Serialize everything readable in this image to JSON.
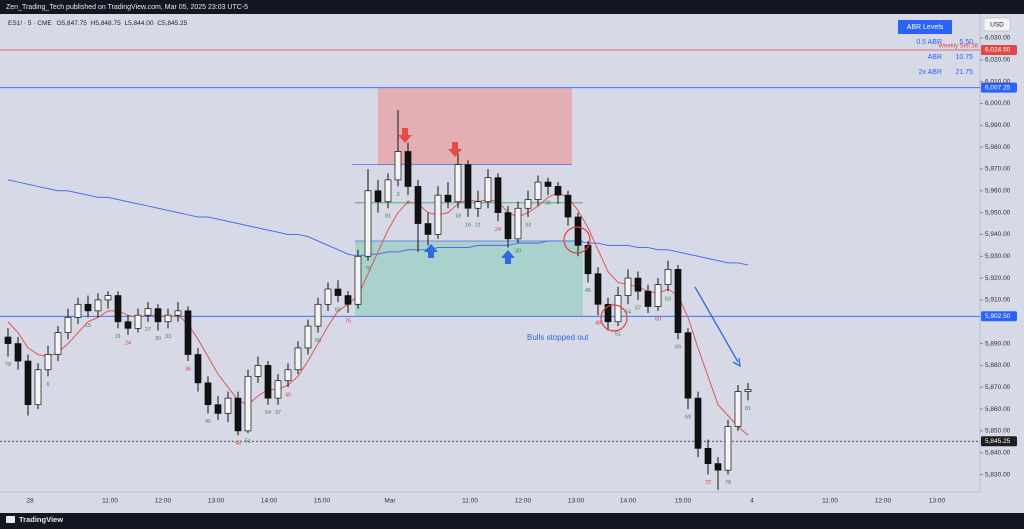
{
  "header": {
    "text": "Zen_Trading_Tech published on TradingView.com, Mar 05, 2025 23:03 UTC-5"
  },
  "footer": {
    "brand": "TradingView"
  },
  "chart_data": {
    "type": "candlestick",
    "symbol": "ES1! · 5 · CME",
    "legend_values": [
      "O5,847.75",
      "H5,848.75",
      "L5,844.00",
      "C5,845.25"
    ],
    "currency": "USD",
    "open": [
      5893,
      5890,
      5882,
      5862,
      5878,
      5885,
      5895,
      5902,
      5908,
      5905,
      5910,
      5912,
      5900,
      5897,
      5903,
      5906,
      5900,
      5903,
      5905,
      5885,
      5872,
      5862,
      5858,
      5865,
      5850,
      5875,
      5880,
      5865,
      5873,
      5878,
      5888,
      5898,
      5908,
      5915,
      5912,
      5908,
      5930,
      5960,
      5955,
      5965,
      5978,
      5962,
      5945,
      5940,
      5958,
      5955,
      5972,
      5952,
      5955,
      5966,
      5950,
      5938,
      5952,
      5956,
      5964,
      5962,
      5958,
      5948,
      5935,
      5922,
      5908,
      5900,
      5912,
      5920,
      5914,
      5907,
      5917,
      5924,
      5895,
      5865,
      5842,
      5835,
      5832,
      5852,
      5868
    ],
    "high": [
      5897,
      5893,
      5885,
      5881,
      5889,
      5898,
      5906,
      5911,
      5912,
      5913,
      5914,
      5914,
      5903,
      5906,
      5909,
      5908,
      5906,
      5909,
      5907,
      5888,
      5875,
      5866,
      5868,
      5868,
      5878,
      5884,
      5882,
      5876,
      5881,
      5891,
      5901,
      5911,
      5918,
      5919,
      5914,
      5933,
      5970,
      5965,
      5968,
      5997,
      5982,
      5965,
      5950,
      5962,
      5964,
      5977,
      5974,
      5960,
      5970,
      5968,
      5953,
      5955,
      5960,
      5967,
      5966,
      5964,
      5960,
      5950,
      5937,
      5925,
      5911,
      5916,
      5924,
      5923,
      5917,
      5920,
      5928,
      5926,
      5897,
      5868,
      5846,
      5838,
      5855,
      5871,
      5872
    ],
    "low": [
      5884,
      5878,
      5857,
      5860,
      5875,
      5882,
      5892,
      5899,
      5902,
      5902,
      5906,
      5897,
      5894,
      5895,
      5900,
      5896,
      5897,
      5900,
      5882,
      5868,
      5858,
      5855,
      5854,
      5848,
      5849,
      5872,
      5862,
      5862,
      5870,
      5876,
      5885,
      5895,
      5905,
      5909,
      5904,
      5906,
      5928,
      5950,
      5952,
      5962,
      5958,
      5932,
      5935,
      5938,
      5952,
      5952,
      5948,
      5948,
      5952,
      5946,
      5934,
      5936,
      5948,
      5953,
      5958,
      5954,
      5944,
      5930,
      5918,
      5903,
      5896,
      5898,
      5908,
      5910,
      5904,
      5905,
      5914,
      5892,
      5860,
      5838,
      5830,
      5823,
      5830,
      5850,
      5864
    ],
    "close": [
      5890,
      5882,
      5862,
      5878,
      5885,
      5895,
      5902,
      5908,
      5905,
      5910,
      5912,
      5900,
      5897,
      5903,
      5906,
      5900,
      5903,
      5905,
      5885,
      5872,
      5862,
      5858,
      5865,
      5850,
      5875,
      5880,
      5865,
      5873,
      5878,
      5888,
      5898,
      5908,
      5915,
      5912,
      5908,
      5930,
      5960,
      5955,
      5965,
      5978,
      5962,
      5945,
      5940,
      5958,
      5955,
      5972,
      5952,
      5955,
      5966,
      5950,
      5938,
      5952,
      5956,
      5964,
      5962,
      5958,
      5948,
      5935,
      5922,
      5908,
      5900,
      5912,
      5920,
      5914,
      5907,
      5917,
      5924,
      5895,
      5865,
      5842,
      5835,
      5832,
      5852,
      5868,
      5869
    ],
    "moving_averages": [
      {
        "color": "#4f6ee8",
        "values": [
          5965,
          5964,
          5963,
          5962,
          5961,
          5960,
          5960,
          5959,
          5958,
          5957,
          5957,
          5956,
          5955,
          5954,
          5953,
          5952,
          5951,
          5950,
          5949,
          5948,
          5948,
          5947,
          5946,
          5945,
          5944,
          5943,
          5942,
          5941,
          5940,
          5940,
          5939,
          5937,
          5935,
          5933,
          5931,
          5930,
          5931,
          5931,
          5932,
          5932,
          5933,
          5933,
          5933,
          5934,
          5934,
          5934,
          5934,
          5935,
          5935,
          5935,
          5935,
          5936,
          5936,
          5936,
          5937,
          5937,
          5937,
          5937,
          5936,
          5936,
          5935,
          5935,
          5935,
          5934,
          5934,
          5933,
          5933,
          5932,
          5931,
          5930,
          5929,
          5928,
          5927,
          5927,
          5926
        ]
      },
      {
        "color": "#e05555",
        "values": [
          5900,
          5895,
          5888,
          5885,
          5884,
          5886,
          5890,
          5895,
          5900,
          5902,
          5905,
          5905,
          5903,
          5902,
          5903,
          5903,
          5902,
          5903,
          5899,
          5892,
          5884,
          5876,
          5870,
          5864,
          5862,
          5866,
          5869,
          5869,
          5871,
          5875,
          5882,
          5890,
          5898,
          5905,
          5908,
          5912,
          5922,
          5932,
          5942,
          5950,
          5955,
          5954,
          5950,
          5949,
          5950,
          5954,
          5956,
          5955,
          5956,
          5955,
          5950,
          5948,
          5950,
          5953,
          5957,
          5959,
          5957,
          5951,
          5943,
          5933,
          5923,
          5918,
          5917,
          5916,
          5914,
          5913,
          5915,
          5912,
          5902,
          5888,
          5875,
          5862,
          5857,
          5852,
          5848
        ]
      }
    ],
    "ylim": [
      5822,
      6041
    ],
    "yticks": [
      {
        "value": 6030,
        "label": "6,030.00"
      },
      {
        "value": 6020,
        "label": "6,020.00"
      },
      {
        "value": 6010,
        "label": "6,010.00"
      },
      {
        "value": 6000,
        "label": "6,000.00"
      },
      {
        "value": 5990,
        "label": "5,990.00"
      },
      {
        "value": 5980,
        "label": "5,980.00"
      },
      {
        "value": 5970,
        "label": "5,970.00"
      },
      {
        "value": 5960,
        "label": "5,960.00"
      },
      {
        "value": 5950,
        "label": "5,950.00"
      },
      {
        "value": 5940,
        "label": "5,940.00"
      },
      {
        "value": 5930,
        "label": "5,930.00"
      },
      {
        "value": 5920,
        "label": "5,920.00"
      },
      {
        "value": 5910,
        "label": "5,910.00"
      },
      {
        "value": 5890,
        "label": "5,890.00"
      },
      {
        "value": 5880,
        "label": "5,880.00"
      },
      {
        "value": 5870,
        "label": "5,870.00"
      },
      {
        "value": 5860,
        "label": "5,860.00"
      },
      {
        "value": 5850,
        "label": "5,850.00"
      },
      {
        "value": 5840,
        "label": "5,840.00"
      },
      {
        "value": 5830,
        "label": "5,830.00"
      }
    ],
    "x_axis_labels": [
      "28",
      "11:00",
      "12:00",
      "13:00",
      "14:00",
      "15:00",
      "Mar",
      "11:00",
      "12:00",
      "13:00",
      "14:00",
      "15:00",
      "4",
      "11:00",
      "12:00",
      "13:00"
    ],
    "levels": [
      {
        "value": 6024.5,
        "label": "6,024.50",
        "color": "#e04848",
        "text": "Weekly Sell 38"
      },
      {
        "value": 6007.25,
        "label": "6,007.25",
        "color": "#2962ff"
      },
      {
        "value": 5902.5,
        "label": "5,902.50",
        "color": "#2962ff"
      },
      {
        "value": 5845.25,
        "label": "5,845.25",
        "color": "#1e1e1e"
      }
    ],
    "zones": [
      {
        "top": 6007,
        "bottom": 5972,
        "color": "rgba(242,120,120,0.45)",
        "edge": "#4f6ee8"
      },
      {
        "top": 5937,
        "bottom": 5902.5,
        "color": "rgba(110,200,170,0.45)",
        "edge": "#4f6ee8",
        "mid": 5954.5
      }
    ],
    "annotation": "Bulls stopped out",
    "bar_labels": [
      {
        "value": 78,
        "color": "#3b8a4a"
      },
      null,
      null,
      null,
      {
        "value": 6,
        "color": "#3b8a4a"
      },
      null,
      null,
      null,
      {
        "value": 15,
        "color": "#3b8a4a"
      },
      null,
      null,
      {
        "value": 31,
        "color": "#3b8a4a"
      },
      {
        "value": 24,
        "color": "#d84040"
      },
      null,
      {
        "value": 27,
        "color": "#3b8a4a"
      },
      {
        "value": 30,
        "color": "#3b8a4a"
      },
      {
        "value": 33,
        "color": "#3b8a4a"
      },
      null,
      {
        "value": 36,
        "color": "#d84040"
      },
      null,
      {
        "value": 40,
        "color": "#3b8a4a"
      },
      null,
      null,
      {
        "value": 48,
        "color": "#d84040"
      },
      {
        "value": 51,
        "color": "#3b8a4a"
      },
      null,
      {
        "value": 54,
        "color": "#3b8a4a"
      },
      {
        "value": 37,
        "color": "#3b8a4a"
      },
      {
        "value": 40,
        "color": "#d84040"
      },
      null,
      null,
      {
        "value": 66,
        "color": "#3b8a4a"
      },
      null,
      {
        "value": 69,
        "color": "#3b8a4a"
      },
      {
        "value": 75,
        "color": "#d84040"
      },
      null,
      {
        "value": 76,
        "color": "#3b8a4a"
      },
      null,
      {
        "value": 81,
        "color": "#3b8a4a"
      },
      {
        "value": 3,
        "color": "#3b8a4a"
      },
      {
        "value": 6,
        "color": "#3b8a4a"
      },
      null,
      null,
      null,
      null,
      {
        "value": 18,
        "color": "#3b8a4a"
      },
      {
        "value": 16,
        "color": "#3b8a4a"
      },
      {
        "value": 21,
        "color": "#3b8a4a"
      },
      null,
      {
        "value": 24,
        "color": "#d84040"
      },
      null,
      {
        "value": 30,
        "color": "#3b8a4a"
      },
      {
        "value": 33,
        "color": "#3b8a4a"
      },
      null,
      {
        "value": 36,
        "color": "#3b8a4a"
      },
      null,
      null,
      null,
      {
        "value": 45,
        "color": "#3b8a4a"
      },
      {
        "value": 48,
        "color": "#d84040"
      },
      null,
      {
        "value": 51,
        "color": "#3b8a4a"
      },
      {
        "value": 54,
        "color": "#3b8a4a"
      },
      {
        "value": 57,
        "color": "#3b8a4a"
      },
      null,
      {
        "value": 60,
        "color": "#d84040"
      },
      {
        "value": 63,
        "color": "#3b8a4a"
      },
      {
        "value": 66,
        "color": "#3b8a4a"
      },
      {
        "value": 69,
        "color": "#3b8a4a"
      },
      null,
      {
        "value": 72,
        "color": "#d84040"
      },
      null,
      {
        "value": 78,
        "color": "#3b8a4a"
      },
      null,
      {
        "value": 81,
        "color": "#3b8a4a"
      }
    ],
    "abr_table": {
      "title": "ABR Levels",
      "rows": [
        [
          "0.5 ABR",
          "5.50"
        ],
        [
          "ABR",
          "10.75"
        ],
        [
          "2x ABR",
          "21.75"
        ]
      ]
    }
  }
}
